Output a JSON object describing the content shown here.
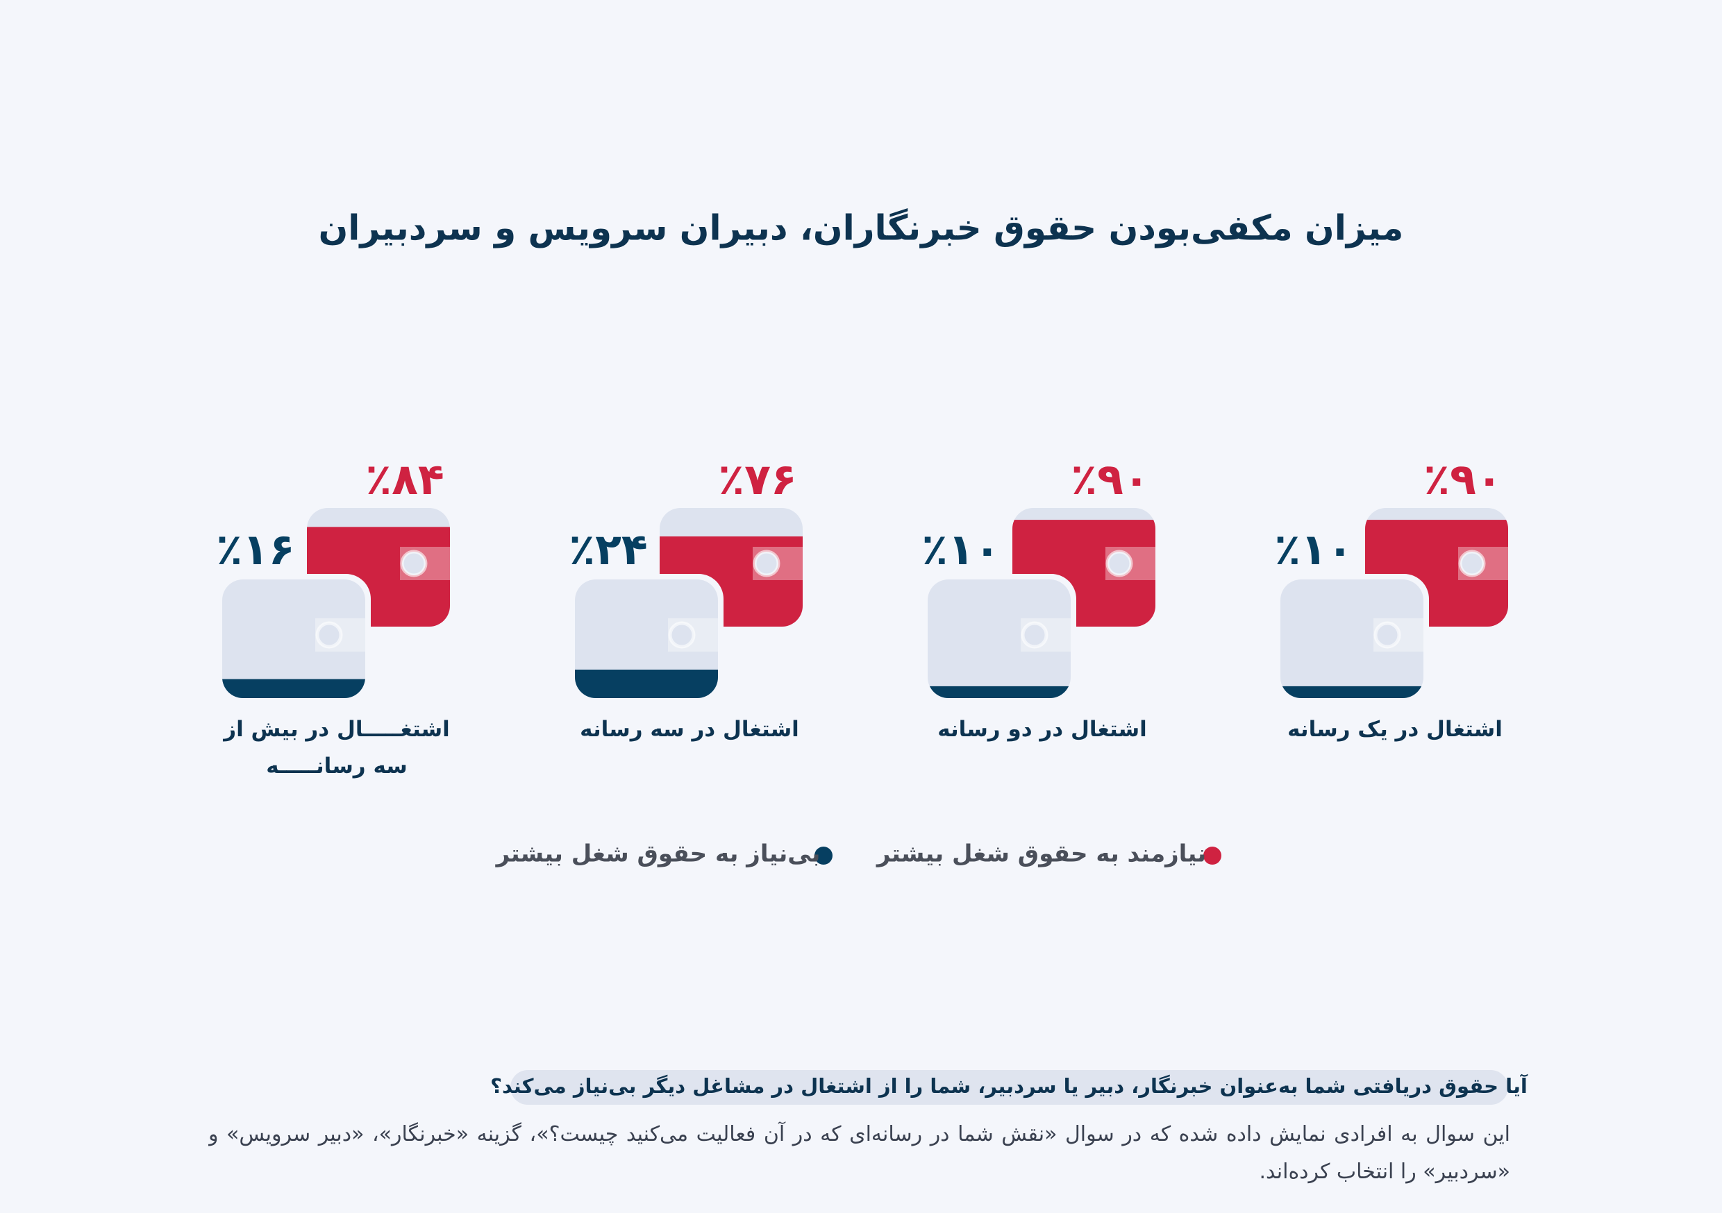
{
  "chart_data": {
    "type": "wallet",
    "title": "میزان مکفی‌بودن حقوق خبرنگاران، دبیران سرویس و سردبیران",
    "categories": [
      "اشتغال در یک رسانه",
      "اشتغال در دو رسانه",
      "اشتغال در سه رسانه",
      "اشتغـــــال در بیش از سه رسانـــــه"
    ],
    "series": [
      {
        "name": "نیازمند به حقوق شغل بیشتر",
        "color": "#cf2241",
        "values": [
          90,
          90,
          76,
          84
        ],
        "value_labels": [
          "٪۹۰",
          "٪۹۰",
          "٪۷۶",
          "٪۸۴"
        ]
      },
      {
        "name": "بی‌نیاز به حقوق شغل بیشتر",
        "color": "#063f61",
        "values": [
          10,
          10,
          24,
          16
        ],
        "value_labels": [
          "٪۱۰",
          "٪۱۰",
          "٪۲۴",
          "٪۱۶"
        ]
      }
    ]
  },
  "note": {
    "question": "آیا حقوق دریافتی شما به‌عنوان خبرنگار، دبیر یا سردبیر، شما را از اشتغال در مشاغل دیگر بی‌نیاز می‌کند؟",
    "description": "این سوال به افرادی نمایش داده شده که در سوال «نقش شما در رسانه‌ای که در آن فعالیت می‌کنید چیست؟»، گزینه «خبرنگار»، «دبیر سرویس» و «سردبیر» را انتخاب کرده‌اند."
  }
}
